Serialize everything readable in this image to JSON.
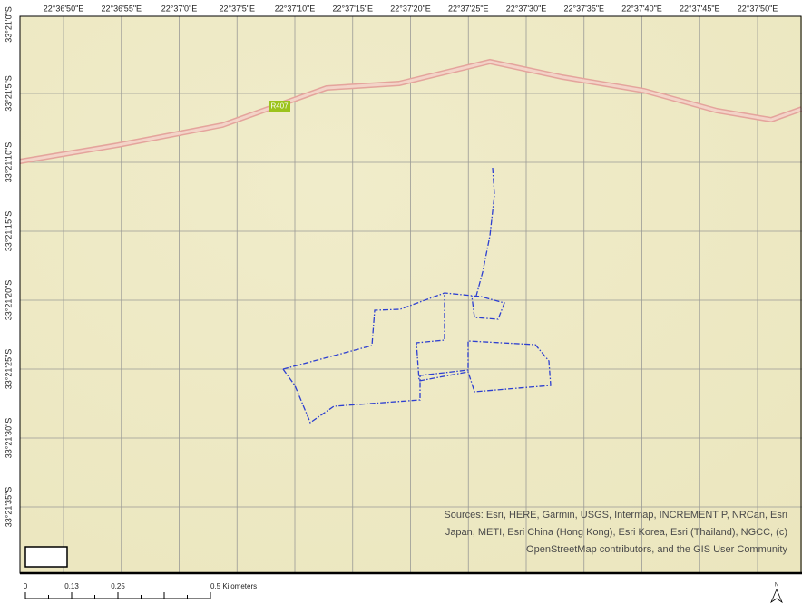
{
  "map": {
    "longitude_labels": [
      "22°36'50\"E",
      "22°36'55\"E",
      "22°37'0\"E",
      "22°37'5\"E",
      "22°37'10\"E",
      "22°37'15\"E",
      "22°37'20\"E",
      "22°37'25\"E",
      "22°37'30\"E",
      "22°37'35\"E",
      "22°37'40\"E",
      "22°37'45\"E",
      "22°37'50\"E"
    ],
    "latitude_labels": [
      "33°21'0\"S",
      "33°21'5\"S",
      "33°21'10\"S",
      "33°21'15\"S",
      "33°21'20\"S",
      "33°21'25\"S",
      "33°21'30\"S",
      "33°21'35\"S"
    ],
    "road_label": "R407",
    "attribution": [
      "Sources: Esri, HERE, Garmin, USGS, Intermap, INCREMENT P, NRCan, Esri",
      "Japan, METI, Esri China (Hong Kong), Esri Korea, Esri (Thailand), NGCC, (c)",
      "OpenStreetMap contributors, and the GIS User Community"
    ],
    "scale_bar": {
      "labels": [
        "0",
        "0.13",
        "0.25",
        "0.5 Kilometers"
      ]
    },
    "north_arrow": "N"
  }
}
